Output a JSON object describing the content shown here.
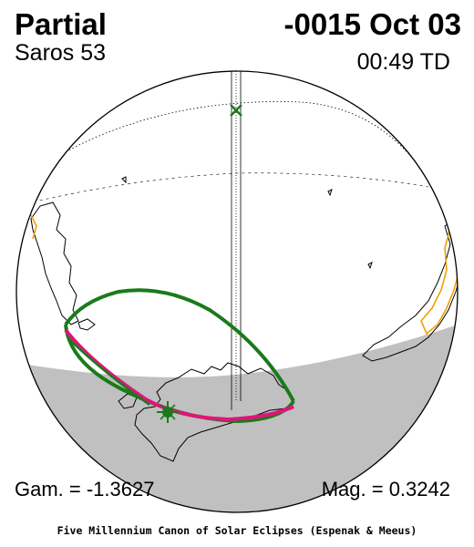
{
  "header": {
    "eclipse_type": "Partial",
    "date": "-0015 Oct 03",
    "saros": "Saros  53",
    "time": "00:49 TD"
  },
  "parameters": {
    "gamma": "Gam. = -1.3627",
    "magnitude": "Mag. = 0.3242"
  },
  "footer": {
    "credit": "Five Millennium Canon of Solar Eclipses (Espenak & Meeus)"
  },
  "map": {
    "projection": "orthographic",
    "night_side_color": "#c0c0c0",
    "eclipse_limit_color": "#1a7a1a",
    "max_eclipse_at_rise_set_color": "#e0147a",
    "greatest_eclipse_marker_color": "#1a7a1a",
    "coastline_color": "#000000",
    "highlighted_coast_color": "#f0a000",
    "icons": [
      "x-marker-icon",
      "sun-marker-icon"
    ]
  }
}
